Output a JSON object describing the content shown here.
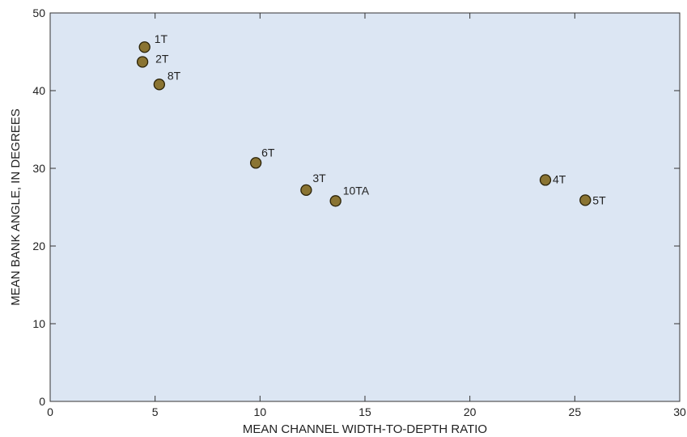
{
  "chart_data": {
    "type": "scatter",
    "xlabel": "MEAN CHANNEL WIDTH-TO-DEPTH RATIO",
    "ylabel": "MEAN BANK ANGLE, IN DEGREES",
    "xlim": [
      0,
      30
    ],
    "ylim": [
      0,
      50
    ],
    "xticks": [
      "0",
      "5",
      "10",
      "15",
      "20",
      "25",
      "30"
    ],
    "yticks": [
      "0",
      "10",
      "20",
      "30",
      "40",
      "50"
    ],
    "grid": false,
    "points": [
      {
        "label": "1T",
        "x": 4.5,
        "y": 45.6
      },
      {
        "label": "2T",
        "x": 4.4,
        "y": 43.7
      },
      {
        "label": "8T",
        "x": 5.2,
        "y": 40.8
      },
      {
        "label": "6T",
        "x": 9.8,
        "y": 30.7
      },
      {
        "label": "3T",
        "x": 12.2,
        "y": 27.2
      },
      {
        "label": "10TA",
        "x": 13.6,
        "y": 25.8
      },
      {
        "label": "4T",
        "x": 23.6,
        "y": 28.5
      },
      {
        "label": "5T",
        "x": 25.5,
        "y": 25.9
      }
    ],
    "colors": {
      "plot_background": "#dce6f3",
      "marker_fill": "#8a7432",
      "marker_stroke": "#2a2208"
    }
  }
}
